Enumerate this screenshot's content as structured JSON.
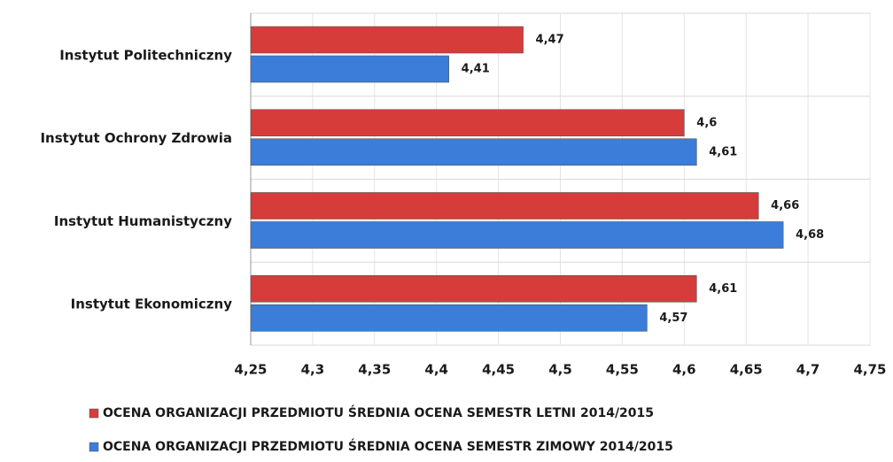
{
  "chart_data": {
    "type": "hbar",
    "categories": [
      "Instytut Politechniczny",
      "Instytut Ochrony Zdrowia",
      "Instytut Humanistyczny",
      "Instytut Ekonomiczny"
    ],
    "series": [
      {
        "name": "OCENA ORGANIZACJI PRZEDMIOTU ŚREDNIA OCENA SEMESTR LETNI 2014/2015",
        "color": "#d63c3a",
        "values": [
          4.47,
          4.6,
          4.66,
          4.61
        ],
        "value_labels": [
          "4,47",
          "4,6",
          "4,66",
          "4,61"
        ]
      },
      {
        "name": "OCENA ORGANIZACJI PRZEDMIOTU ŚREDNIA OCENA SEMESTR ZIMOWY 2014/2015",
        "color": "#3b7dd8",
        "values": [
          4.41,
          4.61,
          4.68,
          4.57
        ],
        "value_labels": [
          "4,41",
          "4,61",
          "4,68",
          "4,57"
        ]
      }
    ],
    "xlim": [
      4.25,
      4.75
    ],
    "xticks": [
      {
        "value": 4.25,
        "label": "4,25"
      },
      {
        "value": 4.3,
        "label": "4,3"
      },
      {
        "value": 4.35,
        "label": "4,35"
      },
      {
        "value": 4.4,
        "label": "4,4"
      },
      {
        "value": 4.45,
        "label": "4,45"
      },
      {
        "value": 4.5,
        "label": "4,5"
      },
      {
        "value": 4.55,
        "label": "4,55"
      },
      {
        "value": 4.6,
        "label": "4,6"
      },
      {
        "value": 4.65,
        "label": "4,65"
      },
      {
        "value": 4.7,
        "label": "4,7"
      },
      {
        "value": 4.75,
        "label": "4,75"
      }
    ],
    "grid": true
  }
}
